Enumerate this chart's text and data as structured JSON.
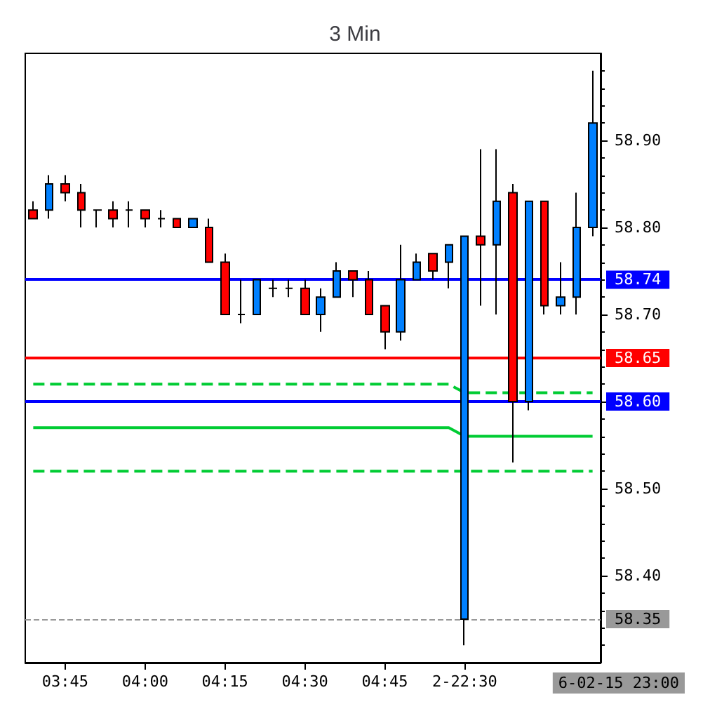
{
  "chart_data": {
    "type": "candlestick",
    "title": "3 Min",
    "categories": [
      null,
      null,
      "03:45",
      null,
      null,
      null,
      null,
      "04:00",
      null,
      null,
      null,
      null,
      "04:15",
      null,
      null,
      null,
      null,
      "04:30",
      null,
      null,
      null,
      null,
      "04:45",
      null,
      null,
      null,
      null,
      "2-22:30",
      null,
      null,
      null,
      null,
      null,
      null,
      null,
      null
    ],
    "ohlc": [
      [
        58.82,
        58.83,
        58.81,
        58.81
      ],
      [
        58.82,
        58.86,
        58.81,
        58.85
      ],
      [
        58.85,
        58.86,
        58.83,
        58.84
      ],
      [
        58.84,
        58.85,
        58.8,
        58.82
      ],
      [
        58.82,
        58.82,
        58.8,
        58.82
      ],
      [
        58.82,
        58.83,
        58.8,
        58.81
      ],
      [
        58.82,
        58.83,
        58.8,
        58.82
      ],
      [
        58.82,
        58.82,
        58.8,
        58.81
      ],
      [
        58.81,
        58.82,
        58.8,
        58.81
      ],
      [
        58.81,
        58.81,
        58.8,
        58.8
      ],
      [
        58.8,
        58.81,
        58.8,
        58.81
      ],
      [
        58.8,
        58.81,
        58.76,
        58.76
      ],
      [
        58.76,
        58.77,
        58.7,
        58.7
      ],
      [
        58.7,
        58.74,
        58.69,
        58.7
      ],
      [
        58.7,
        58.74,
        58.7,
        58.74
      ],
      [
        58.73,
        58.74,
        58.72,
        58.73
      ],
      [
        58.73,
        58.74,
        58.72,
        58.73
      ],
      [
        58.73,
        58.74,
        58.7,
        58.7
      ],
      [
        58.7,
        58.73,
        58.68,
        58.72
      ],
      [
        58.72,
        58.76,
        58.72,
        58.75
      ],
      [
        58.75,
        58.75,
        58.72,
        58.74
      ],
      [
        58.74,
        58.75,
        58.7,
        58.7
      ],
      [
        58.71,
        58.71,
        58.66,
        58.68
      ],
      [
        58.68,
        58.78,
        58.67,
        58.74
      ],
      [
        58.74,
        58.77,
        58.74,
        58.76
      ],
      [
        58.77,
        58.77,
        58.74,
        58.75
      ],
      [
        58.76,
        58.78,
        58.73,
        58.78
      ],
      [
        58.35,
        58.79,
        58.32,
        58.79
      ],
      [
        58.79,
        58.89,
        58.71,
        58.78
      ],
      [
        58.78,
        58.89,
        58.7,
        58.83
      ],
      [
        58.84,
        58.85,
        58.53,
        58.6
      ],
      [
        58.6,
        58.83,
        58.59,
        58.83
      ],
      [
        58.83,
        58.83,
        58.7,
        58.71
      ],
      [
        58.71,
        58.76,
        58.7,
        58.72
      ],
      [
        58.72,
        58.84,
        58.7,
        58.8
      ],
      [
        58.8,
        58.98,
        58.79,
        58.92
      ]
    ],
    "series": [
      {
        "type": "line",
        "color": "#00cc33",
        "line_style": "dashed",
        "values": [
          58.62,
          58.62,
          58.62,
          58.62,
          58.62,
          58.62,
          58.62,
          58.62,
          58.62,
          58.62,
          58.62,
          58.62,
          58.62,
          58.62,
          58.62,
          58.62,
          58.62,
          58.62,
          58.62,
          58.62,
          58.62,
          58.62,
          58.62,
          58.62,
          58.62,
          58.62,
          58.62,
          58.61,
          58.61,
          58.61,
          58.61,
          58.61,
          58.61,
          58.61,
          58.61,
          58.61
        ]
      },
      {
        "type": "line",
        "color": "#00cc33",
        "line_style": "solid",
        "values": [
          58.57,
          58.57,
          58.57,
          58.57,
          58.57,
          58.57,
          58.57,
          58.57,
          58.57,
          58.57,
          58.57,
          58.57,
          58.57,
          58.57,
          58.57,
          58.57,
          58.57,
          58.57,
          58.57,
          58.57,
          58.57,
          58.57,
          58.57,
          58.57,
          58.57,
          58.57,
          58.57,
          58.56,
          58.56,
          58.56,
          58.56,
          58.56,
          58.56,
          58.56,
          58.56,
          58.56
        ]
      },
      {
        "type": "line",
        "color": "#00cc33",
        "line_style": "dashed",
        "values": [
          58.52,
          58.52,
          58.52,
          58.52,
          58.52,
          58.52,
          58.52,
          58.52,
          58.52,
          58.52,
          58.52,
          58.52,
          58.52,
          58.52,
          58.52,
          58.52,
          58.52,
          58.52,
          58.52,
          58.52,
          58.52,
          58.52,
          58.52,
          58.52,
          58.52,
          58.52,
          58.52,
          58.52,
          58.52,
          58.52,
          58.52,
          58.52,
          58.52,
          58.52,
          58.52,
          58.52
        ]
      }
    ],
    "ylim": [
      58.3,
      59.0
    ],
    "yticks": [
      {
        "value": 58.4,
        "label": "58.40"
      },
      {
        "value": 58.5,
        "label": "58.50"
      },
      {
        "value": 58.6,
        "label": null
      },
      {
        "value": 58.7,
        "label": "58.70"
      },
      {
        "value": 58.8,
        "label": "58.80"
      },
      {
        "value": 58.9,
        "label": "58.90"
      }
    ],
    "ref_lines": [
      {
        "axis": "y",
        "value": 58.74,
        "label": "58.74",
        "color": "#0000ff",
        "line_style": "solid"
      },
      {
        "axis": "y",
        "value": 58.65,
        "label": "58.65",
        "color": "#ff0000",
        "line_style": "solid"
      },
      {
        "axis": "y",
        "value": 58.6,
        "label": "58.60",
        "color": "#0000ff",
        "line_style": "solid"
      },
      {
        "axis": "y",
        "value": 58.35,
        "label": "58.35",
        "color": "#999999",
        "line_style": "dashed"
      }
    ],
    "annotations": [
      "6-02-15 23:00"
    ],
    "grid": false
  }
}
